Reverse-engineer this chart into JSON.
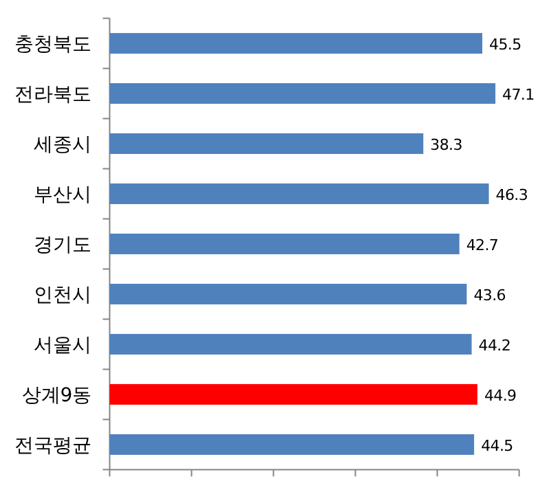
{
  "chart_data": {
    "type": "bar",
    "orientation": "horizontal",
    "categories": [
      "충청북도",
      "전라북도",
      "세종시",
      "부산시",
      "경기도",
      "인천시",
      "서울시",
      "상계9동",
      "전국평균"
    ],
    "values": [
      45.5,
      47.1,
      38.3,
      46.3,
      42.7,
      43.6,
      44.2,
      44.9,
      44.5
    ],
    "colors": [
      "#4f81bd",
      "#4f81bd",
      "#4f81bd",
      "#4f81bd",
      "#4f81bd",
      "#4f81bd",
      "#4f81bd",
      "#ff0000",
      "#4f81bd"
    ],
    "xlim": [
      0,
      50
    ],
    "xticks": [
      {
        "value": 0,
        "label": null
      },
      {
        "value": 10,
        "label": null
      },
      {
        "value": 20,
        "label": null
      },
      {
        "value": 30,
        "label": null
      },
      {
        "value": 40,
        "label": null
      },
      {
        "value": 50,
        "label": null
      }
    ],
    "tick_labels": "y",
    "data_labels": true
  }
}
